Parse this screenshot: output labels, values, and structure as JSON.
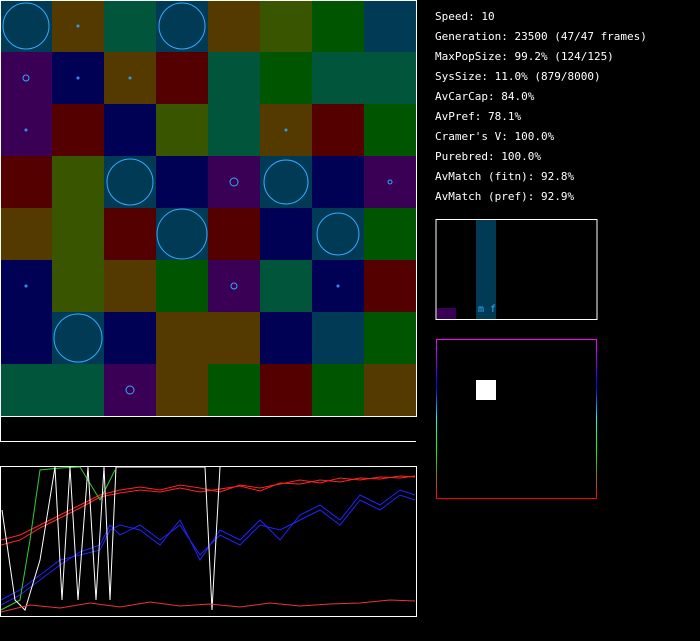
{
  "stats": [
    "Speed: 10",
    "Generation: 23500 (47/47 frames)",
    "MaxPopSize: 99.2% (124/125)",
    "SysSize: 11.0% (879/8000)",
    "AvCarCap: 84.0%",
    "AvPref: 78.1%",
    "Cramer's V: 100.0%",
    "Purebred: 100.0%",
    "AvMatch (fitn): 92.8%",
    "AvMatch (pref): 92.9%"
  ],
  "histogram": {
    "label": "m f"
  }
}
